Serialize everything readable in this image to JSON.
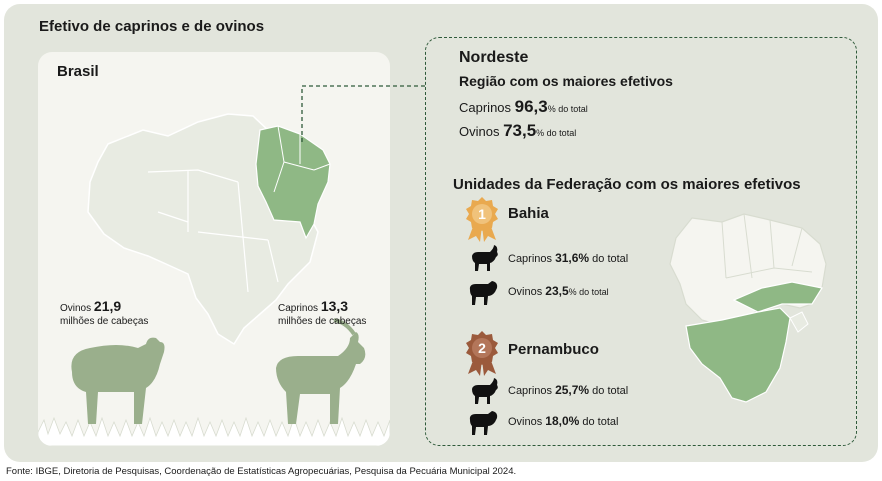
{
  "title": "Efetivo de caprinos e de ovinos",
  "brasil": {
    "label": "Brasil",
    "ovinos": {
      "prefix": "Ovinos ",
      "value": "21,9",
      "unit": "milhões de cabeças"
    },
    "caprinos": {
      "prefix": "Caprinos ",
      "value": "13,3",
      "unit": "milhões de cabeças"
    }
  },
  "nordeste": {
    "title": "Nordeste",
    "subtitle": "Região com os maiores efetivos",
    "caprinos": {
      "label": "Caprinos ",
      "value": "96,3",
      "suffix": "% do total"
    },
    "ovinos": {
      "label": "Ovinos ",
      "value": "73,5",
      "suffix": "% do total"
    }
  },
  "uf": {
    "title": "Unidades da Federação com os maiores efetivos",
    "states": [
      {
        "rank": "1",
        "name": "Bahia",
        "medal_color": "#e9a94f",
        "caprinos": {
          "label": "Caprinos ",
          "value": "31,6%",
          "suffix": " do total"
        },
        "ovinos": {
          "label": "Ovinos ",
          "value": "23,5",
          "suffix": "% do total"
        }
      },
      {
        "rank": "2",
        "name": "Pernambuco",
        "medal_color": "#9b5a3c",
        "caprinos": {
          "label": "Caprinos ",
          "value": "25,7%",
          "suffix": " do total"
        },
        "ovinos": {
          "label": "Ovinos ",
          "value": "18,0%",
          "suffix": " do total"
        }
      }
    ]
  },
  "colors": {
    "panel": "#e2e5dc",
    "highlight": "#8fb885",
    "map_base": "#e8ebe2",
    "animal": "#9aaf8c",
    "icon": "#111111"
  },
  "source": "Fonte: IBGE, Diretoria de Pesquisas, Coordenação de Estatísticas Agropecuárias, Pesquisa da Pecuária Municipal 2024."
}
